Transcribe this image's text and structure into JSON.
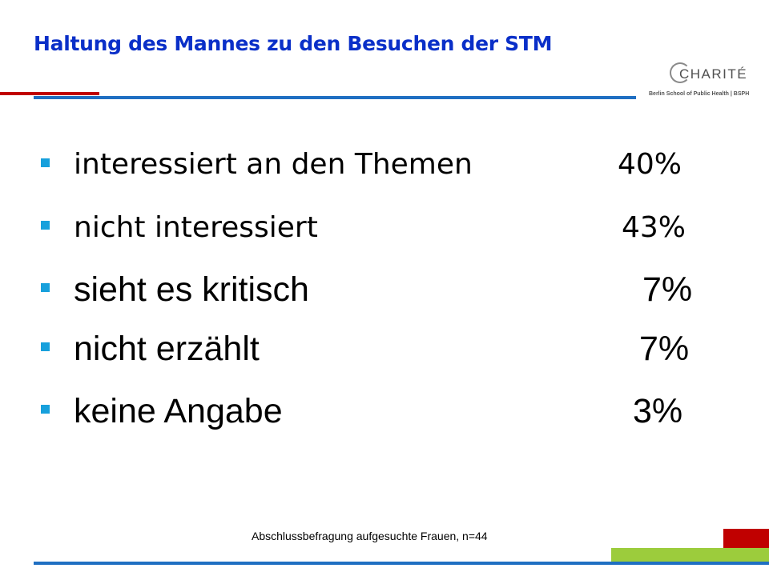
{
  "title": "Haltung des Mannes zu den Besuchen der STM",
  "logo": {
    "name": "CHARITÉ",
    "subtitle": "Berlin School of Public Health | BSPH"
  },
  "items": [
    {
      "label": "interessiert an den Themen",
      "value": "40%"
    },
    {
      "label": "nicht interessiert",
      "value": "43%"
    },
    {
      "label": "sieht es kritisch",
      "value": "7%"
    },
    {
      "label": "nicht erzählt",
      "value": "7%"
    },
    {
      "label": "keine Angabe",
      "value": "3%"
    }
  ],
  "footnote": "Abschlussbefragung aufgesuchte Frauen, n=44",
  "colors": {
    "title": "#0a2fc8",
    "bullet": "#17a0dc",
    "accent_red": "#c00000",
    "accent_blue": "#1f6fc2",
    "accent_green": "#9ccc3c"
  }
}
